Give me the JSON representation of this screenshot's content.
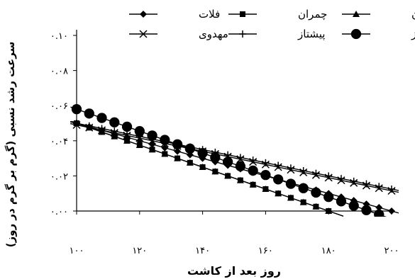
{
  "chart_data": {
    "type": "line",
    "title": "",
    "xlabel": "روز بعد از کاشت",
    "ylabel": "سرعت رشد نسبی (گرم بر گرم در روز)",
    "xlim": [
      100,
      200
    ],
    "ylim": [
      0.0,
      0.1
    ],
    "x_ticks": [
      100,
      120,
      140,
      160,
      180,
      200
    ],
    "x_tick_labels": [
      "۱۰۰",
      "۱۲۰",
      "۱۴۰",
      "۱۶۰",
      "۱۸۰",
      "۲۰۰"
    ],
    "y_ticks": [
      0.0,
      0.02,
      0.04,
      0.06,
      0.08,
      0.1
    ],
    "y_tick_labels": [
      "۰.۰۰",
      "۰.۰۲",
      "۰.۰۴",
      "۰.۰۶",
      "۰.۰۸",
      "۰.۱۰"
    ],
    "grid": false,
    "legend_position": "top",
    "x": [
      100,
      104,
      108,
      112,
      116,
      120,
      124,
      128,
      132,
      136,
      140,
      144,
      148,
      152,
      156,
      160,
      164,
      168,
      172,
      176,
      180,
      184,
      188,
      192,
      196,
      200
    ],
    "series": [
      {
        "name": "فلات",
        "marker": "diamond",
        "color": "#000000",
        "x": [
          100,
          104,
          108,
          112,
          116,
          120,
          124,
          128,
          132,
          136,
          140,
          144,
          148,
          152,
          156,
          160,
          164,
          168,
          172,
          176,
          180,
          184,
          188,
          192,
          196,
          200
        ],
        "values": [
          0.05,
          0.048,
          0.046,
          0.044,
          0.042,
          0.04,
          0.038,
          0.036,
          0.034,
          0.032,
          0.03,
          0.028,
          0.026,
          0.024,
          0.022,
          0.02,
          0.018,
          0.016,
          0.014,
          0.012,
          0.01,
          0.008,
          0.006,
          0.004,
          0.002,
          0.0
        ]
      },
      {
        "name": "چمران",
        "marker": "square",
        "color": "#000000",
        "x": [
          100,
          104,
          108,
          112,
          116,
          120,
          124,
          128,
          132,
          136,
          140,
          144,
          148,
          152,
          156,
          160,
          164,
          168,
          172,
          176,
          180
        ],
        "values": [
          0.05,
          0.0475,
          0.045,
          0.0425,
          0.04,
          0.0375,
          0.035,
          0.0325,
          0.03,
          0.0275,
          0.025,
          0.0225,
          0.02,
          0.0175,
          0.015,
          0.0125,
          0.01,
          0.0075,
          0.005,
          0.0025,
          0.0
        ]
      },
      {
        "name": "گاسکوژن",
        "marker": "triangle",
        "color": "#000000",
        "x": [
          100,
          104,
          108,
          112,
          116,
          120,
          124,
          128,
          132,
          136,
          140,
          144,
          148,
          152,
          156,
          160,
          164,
          168,
          172,
          176,
          180
        ],
        "values": [
          0.05,
          0.0475,
          0.045,
          0.0425,
          0.04,
          0.0375,
          0.035,
          0.0325,
          0.03,
          0.0275,
          0.025,
          0.0225,
          0.02,
          0.0175,
          0.015,
          0.0125,
          0.01,
          0.0075,
          0.005,
          0.0025,
          0.0
        ]
      },
      {
        "name": "مهدوی",
        "marker": "x",
        "color": "#000000",
        "x": [
          100,
          104,
          108,
          112,
          116,
          120,
          124,
          128,
          132,
          136,
          140,
          144,
          148,
          152,
          156,
          160,
          164,
          168,
          172,
          176,
          180,
          184,
          188,
          192,
          196,
          200
        ],
        "values": [
          0.049,
          0.0475,
          0.046,
          0.0445,
          0.043,
          0.0415,
          0.04,
          0.0385,
          0.037,
          0.0355,
          0.034,
          0.0325,
          0.031,
          0.0295,
          0.028,
          0.0265,
          0.025,
          0.0235,
          0.022,
          0.0205,
          0.019,
          0.0175,
          0.016,
          0.0145,
          0.013,
          0.0115
        ]
      },
      {
        "name": "پیشتاز",
        "marker": "plus",
        "color": "#000000",
        "x": [
          100,
          104,
          108,
          112,
          116,
          120,
          124,
          128,
          132,
          136,
          140,
          144,
          148,
          152,
          156,
          160,
          164,
          168,
          172,
          176,
          180,
          184,
          188,
          192,
          196,
          200
        ],
        "values": [
          0.05,
          0.0485,
          0.047,
          0.0455,
          0.044,
          0.0425,
          0.041,
          0.0395,
          0.038,
          0.0365,
          0.035,
          0.0335,
          0.032,
          0.0305,
          0.029,
          0.0275,
          0.026,
          0.0245,
          0.023,
          0.0215,
          0.02,
          0.0185,
          0.017,
          0.0155,
          0.014,
          0.0125
        ]
      },
      {
        "name": "شیراز",
        "marker": "circle",
        "color": "#000000",
        "x": [
          100,
          104,
          108,
          112,
          116,
          120,
          124,
          128,
          132,
          136,
          140,
          144,
          148,
          152,
          156,
          160,
          164,
          168,
          172,
          176,
          180,
          184,
          188,
          192,
          196
        ],
        "values": [
          0.058,
          0.0555,
          0.053,
          0.0505,
          0.048,
          0.0455,
          0.043,
          0.0405,
          0.038,
          0.0355,
          0.033,
          0.0305,
          0.028,
          0.0255,
          0.023,
          0.0205,
          0.018,
          0.0155,
          0.013,
          0.0105,
          0.008,
          0.0055,
          0.003,
          0.0005,
          -0.002
        ]
      }
    ]
  }
}
